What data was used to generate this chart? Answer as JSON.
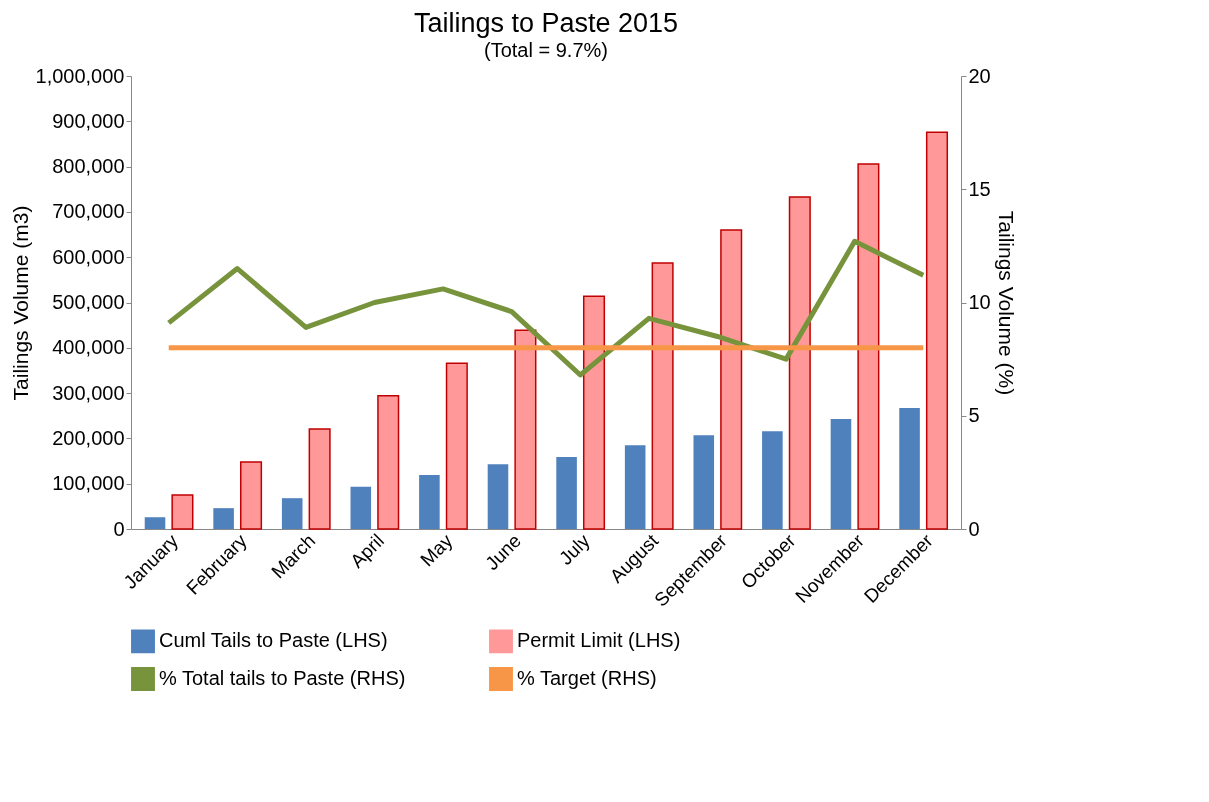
{
  "chart_data": {
    "type": "bar",
    "title": "Tailings to Paste 2015",
    "subtitle": "(Total = 9.7%)",
    "ylabel": "Tailings Volume (m3)",
    "y2label": "Tailings Volume (%)",
    "categories": [
      "January",
      "February",
      "March",
      "April",
      "May",
      "June",
      "July",
      "August",
      "September",
      "October",
      "November",
      "December"
    ],
    "series": [
      {
        "name": "Cuml Tails to Paste (LHS)",
        "color": "#4f81bd",
        "values": [
          26000,
          46000,
          68000,
          93000,
          119000,
          143000,
          159000,
          185000,
          207000,
          216000,
          243000,
          267000
        ]
      },
      {
        "name": "Permit Limit (LHS)",
        "color": "#ff9999",
        "values": [
          75000,
          148000,
          221000,
          294000,
          366000,
          439000,
          514000,
          587000,
          660000,
          733000,
          806000,
          876000
        ]
      },
      {
        "name": "% Total tails to Paste (RHS)",
        "type": "line",
        "axis": "y2",
        "color": "#77933c",
        "values": [
          9.1,
          11.5,
          8.9,
          10.0,
          10.6,
          9.6,
          6.8,
          9.3,
          8.5,
          7.5,
          12.7,
          11.2
        ]
      },
      {
        "name": "% Target (RHS)",
        "type": "line",
        "axis": "y2",
        "color": "#f79646",
        "values": [
          8,
          8,
          8,
          8,
          8,
          8,
          8,
          8,
          8,
          8,
          8,
          8
        ]
      }
    ],
    "ylim": [
      0,
      1000000
    ],
    "yticks": [
      0,
      {
        "value": 100000,
        "label": "100,000"
      },
      {
        "value": 200000,
        "label": "200,000"
      },
      {
        "value": 300000,
        "label": "300,000"
      },
      {
        "value": 400000,
        "label": "400,000"
      },
      {
        "value": 500000,
        "label": "500,000"
      },
      {
        "value": 600000,
        "label": "600,000"
      },
      {
        "value": 700000,
        "label": "700,000"
      },
      {
        "value": 800000,
        "label": "800,000"
      },
      {
        "value": 900000,
        "label": "900,000"
      },
      {
        "value": 1000000,
        "label": "1,000,000"
      }
    ],
    "y2lim": [
      0,
      20
    ],
    "y2ticks": [
      0,
      5,
      10,
      15,
      20
    ],
    "grid": false,
    "legend": "bottom",
    "marker": "none",
    "line_style": "solid"
  }
}
